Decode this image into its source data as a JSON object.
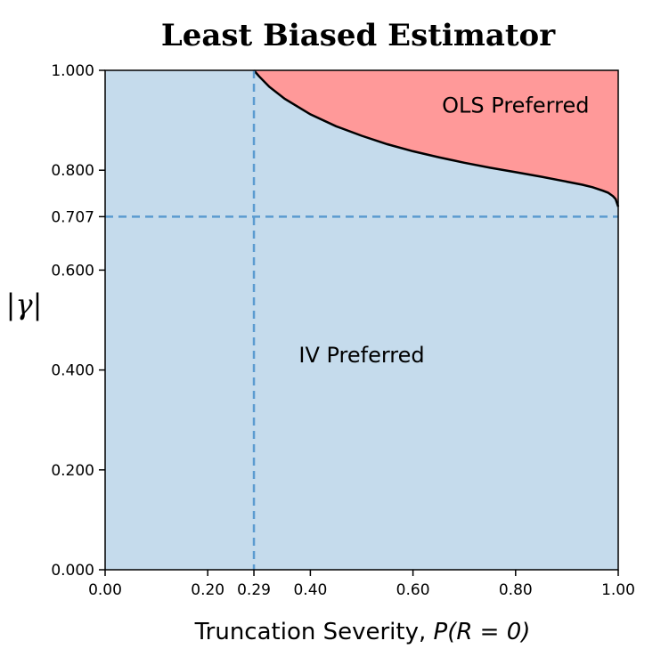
{
  "chart_data": {
    "type": "area",
    "title": "Least Biased Estimator",
    "xlabel_prefix": "Truncation Severity, ",
    "xlabel_math": "P(R = 0)",
    "ylabel": "|γ|",
    "xlim": [
      0.0,
      1.0
    ],
    "ylim": [
      0.0,
      1.0
    ],
    "x_ticks": [
      {
        "value": 0.0,
        "label": "0.00"
      },
      {
        "value": 0.2,
        "label": "0.20"
      },
      {
        "value": 0.29,
        "label": "0.29"
      },
      {
        "value": 0.4,
        "label": "0.40"
      },
      {
        "value": 0.6,
        "label": "0.60"
      },
      {
        "value": 0.8,
        "label": "0.80"
      },
      {
        "value": 1.0,
        "label": "1.00"
      }
    ],
    "y_ticks": [
      {
        "value": 0.0,
        "label": "0.000"
      },
      {
        "value": 0.2,
        "label": "0.200"
      },
      {
        "value": 0.4,
        "label": "0.400"
      },
      {
        "value": 0.6,
        "label": "0.600"
      },
      {
        "value": 0.707,
        "label": "0.707"
      },
      {
        "value": 0.8,
        "label": "0.800"
      },
      {
        "value": 1.0,
        "label": "1.000"
      }
    ],
    "boundary": {
      "x": [
        0.29,
        0.3,
        0.32,
        0.35,
        0.4,
        0.45,
        0.5,
        0.55,
        0.6,
        0.65,
        0.7,
        0.75,
        0.8,
        0.85,
        0.9,
        0.93,
        0.95,
        0.97,
        0.98,
        0.99,
        0.995,
        1.0
      ],
      "y": [
        1.0,
        0.988,
        0.967,
        0.943,
        0.912,
        0.888,
        0.869,
        0.852,
        0.838,
        0.826,
        0.815,
        0.805,
        0.796,
        0.787,
        0.777,
        0.771,
        0.766,
        0.759,
        0.755,
        0.748,
        0.742,
        0.727
      ]
    },
    "reference_lines": [
      {
        "orientation": "vertical",
        "value": 0.29
      },
      {
        "orientation": "horizontal",
        "value": 0.707
      }
    ],
    "regions": [
      {
        "label": "OLS Preferred",
        "x": 0.8,
        "y": 0.915,
        "color": "#ff9999"
      },
      {
        "label": "IV Preferred",
        "x": 0.5,
        "y": 0.415,
        "color": "#c5dbec"
      }
    ],
    "grid": false,
    "colors": {
      "iv_region": "#c5dbec",
      "ols_region": "#ff9999",
      "reference_line": "#5b9bd0",
      "boundary": "#000000"
    }
  }
}
